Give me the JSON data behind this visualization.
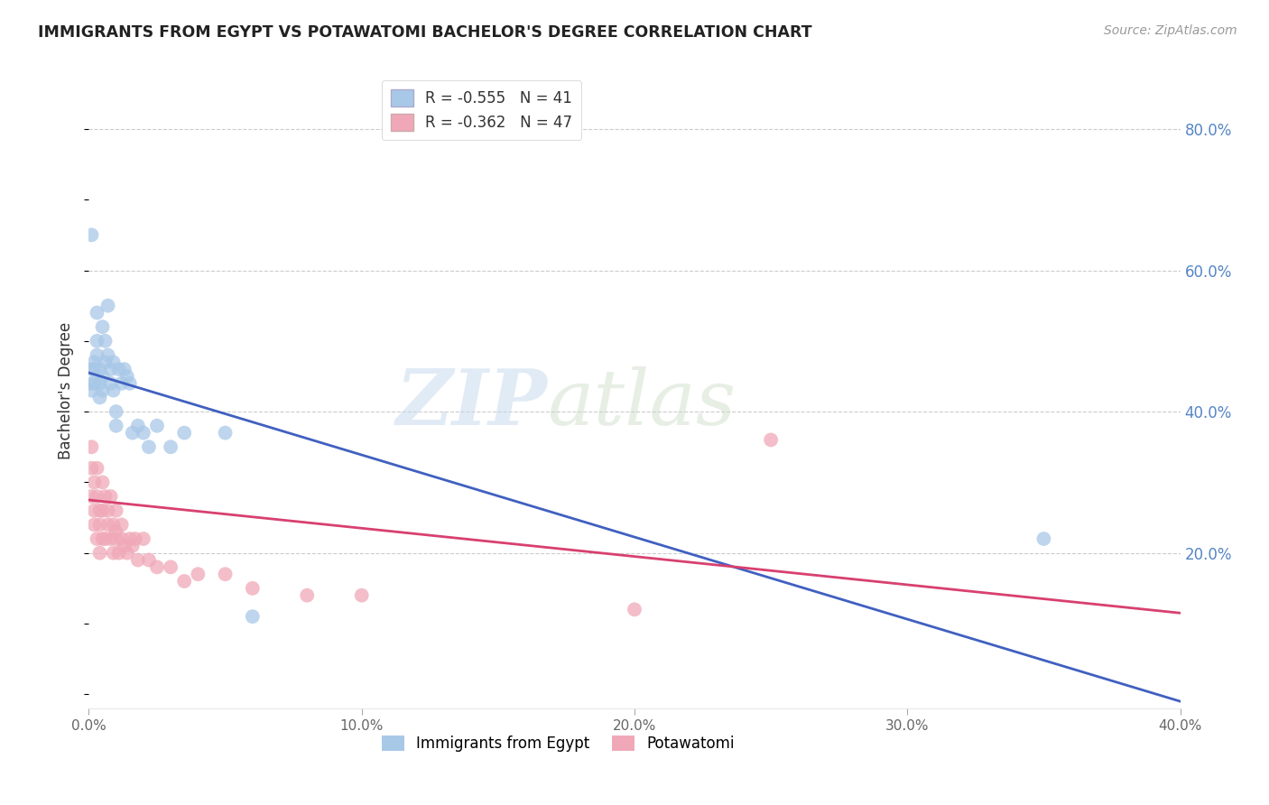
{
  "title": "IMMIGRANTS FROM EGYPT VS POTAWATOMI BACHELOR'S DEGREE CORRELATION CHART",
  "source": "Source: ZipAtlas.com",
  "ylabel_left": "Bachelor's Degree",
  "xlim": [
    0.0,
    0.4
  ],
  "ylim": [
    -0.02,
    0.88
  ],
  "right_yticks": [
    0.2,
    0.4,
    0.6,
    0.8
  ],
  "right_ytick_labels": [
    "20.0%",
    "40.0%",
    "60.0%",
    "80.0%"
  ],
  "xtick_values": [
    0.0,
    0.1,
    0.2,
    0.3,
    0.4
  ],
  "xtick_labels": [
    "0.0%",
    "10.0%",
    "20.0%",
    "30.0%",
    "40.0%"
  ],
  "blue_R": -0.555,
  "blue_N": 41,
  "pink_R": -0.362,
  "pink_N": 47,
  "blue_color": "#a8c8e8",
  "pink_color": "#f0a8b8",
  "blue_line_color": "#4060c0",
  "pink_line_color": "#d84070",
  "legend_label_blue": "Immigrants from Egypt",
  "legend_label_pink": "Potawatomi",
  "watermark_zip": "ZIP",
  "watermark_atlas": "atlas",
  "blue_scatter_x": [
    0.001,
    0.001,
    0.001,
    0.002,
    0.002,
    0.002,
    0.003,
    0.003,
    0.003,
    0.004,
    0.004,
    0.004,
    0.005,
    0.005,
    0.005,
    0.006,
    0.006,
    0.007,
    0.007,
    0.008,
    0.008,
    0.009,
    0.009,
    0.01,
    0.01,
    0.011,
    0.012,
    0.013,
    0.014,
    0.015,
    0.016,
    0.018,
    0.02,
    0.022,
    0.025,
    0.03,
    0.035,
    0.05,
    0.06,
    0.35,
    0.001
  ],
  "blue_scatter_y": [
    0.44,
    0.46,
    0.43,
    0.47,
    0.44,
    0.46,
    0.48,
    0.5,
    0.54,
    0.44,
    0.46,
    0.42,
    0.45,
    0.52,
    0.43,
    0.47,
    0.5,
    0.55,
    0.48,
    0.44,
    0.46,
    0.43,
    0.47,
    0.4,
    0.38,
    0.46,
    0.44,
    0.46,
    0.45,
    0.44,
    0.37,
    0.38,
    0.37,
    0.35,
    0.38,
    0.35,
    0.37,
    0.37,
    0.11,
    0.22,
    0.65
  ],
  "pink_scatter_x": [
    0.001,
    0.001,
    0.001,
    0.002,
    0.002,
    0.002,
    0.003,
    0.003,
    0.003,
    0.004,
    0.004,
    0.004,
    0.005,
    0.005,
    0.005,
    0.006,
    0.006,
    0.007,
    0.007,
    0.008,
    0.008,
    0.009,
    0.009,
    0.01,
    0.01,
    0.01,
    0.011,
    0.012,
    0.012,
    0.013,
    0.014,
    0.015,
    0.016,
    0.017,
    0.018,
    0.02,
    0.022,
    0.025,
    0.03,
    0.035,
    0.04,
    0.05,
    0.06,
    0.08,
    0.1,
    0.2,
    0.25
  ],
  "pink_scatter_y": [
    0.28,
    0.32,
    0.35,
    0.24,
    0.3,
    0.26,
    0.22,
    0.28,
    0.32,
    0.24,
    0.26,
    0.2,
    0.22,
    0.26,
    0.3,
    0.22,
    0.28,
    0.24,
    0.26,
    0.22,
    0.28,
    0.2,
    0.24,
    0.23,
    0.22,
    0.26,
    0.2,
    0.22,
    0.24,
    0.21,
    0.2,
    0.22,
    0.21,
    0.22,
    0.19,
    0.22,
    0.19,
    0.18,
    0.18,
    0.16,
    0.17,
    0.17,
    0.15,
    0.14,
    0.14,
    0.12,
    0.36
  ]
}
